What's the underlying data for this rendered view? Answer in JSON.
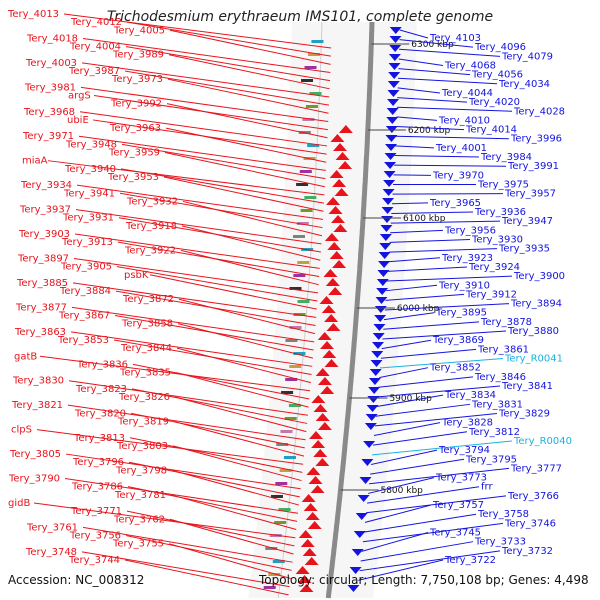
{
  "title": "Trichodesmium erythraeum IMS101, complete genome",
  "accession": "Accession: NC_008312",
  "topology": "Topology: circular; Length: 7,750,108 bp; Genes: 4,498",
  "colors": {
    "forward": "#e8141c",
    "reverse": "#1414e0",
    "rna": "#18b4e0",
    "backbone": "#8a8a8a",
    "tick": "#2a8a2a"
  },
  "scale_ticks": [
    {
      "label": "6300 kbp"
    },
    {
      "label": "6200 kbp"
    },
    {
      "label": "6100 kbp"
    },
    {
      "label": "6000 kbp"
    },
    {
      "label": "5900 kbp"
    },
    {
      "label": "5800 kbp"
    }
  ],
  "left_labels": [
    "Tery_4013",
    "Tery_4012",
    "Tery_4005",
    "Tery_4018",
    "Tery_4004",
    "Tery_3989",
    "Tery_4003",
    "Tery_3987",
    "Tery_3973",
    "Tery_3981",
    "argS",
    "Tery_3992",
    "Tery_3968",
    "ubiE",
    "Tery_3963",
    "Tery_3971",
    "Tery_3948",
    "Tery_3959",
    "miaA",
    "Tery_3940",
    "Tery_3953",
    "Tery_3934",
    "Tery_3941",
    "Tery_3932",
    "Tery_3937",
    "Tery_3931",
    "Tery_3918",
    "Tery_3903",
    "Tery_3913",
    "Tery_3922",
    "Tery_3897",
    "Tery_3905",
    "psbK",
    "Tery_3885",
    "Tery_3884",
    "Tery_3872",
    "Tery_3877",
    "Tery_3867",
    "Tery_3858",
    "Tery_3863",
    "Tery_3853",
    "Tery_3844",
    "gatB",
    "Tery_3836",
    "Tery_3835",
    "Tery_3830",
    "Tery_3823",
    "Tery_3826",
    "Tery_3821",
    "Tery_3820",
    "Tery_3819",
    "clpS",
    "Tery_3813",
    "Tery_3803",
    "Tery_3805",
    "Tery_3796",
    "Tery_3798",
    "Tery_3790",
    "Tery_3786",
    "Tery_3781",
    "gidB",
    "Tery_3771",
    "Tery_3762",
    "Tery_3761",
    "Tery_3756",
    "Tery_3755",
    "Tery_3748",
    "Tery_3744"
  ],
  "right_labels": [
    "Tery_4103",
    "Tery_4096",
    "Tery_4079",
    "Tery_4068",
    "Tery_4056",
    "Tery_4034",
    "Tery_4044",
    "Tery_4020",
    "Tery_4028",
    "Tery_4010",
    "Tery_4014",
    "Tery_3996",
    "Tery_4001",
    "Tery_3984",
    "Tery_3991",
    "Tery_3970",
    "Tery_3975",
    "Tery_3957",
    "Tery_3965",
    "Tery_3936",
    "Tery_3947",
    "Tery_3956",
    "Tery_3930",
    "Tery_3935",
    "Tery_3923",
    "Tery_3924",
    "Tery_3900",
    "Tery_3910",
    "Tery_3912",
    "Tery_3894",
    "Tery_3895",
    "Tery_3878",
    "Tery_3880",
    "Tery_3869",
    "Tery_3861",
    "Tery_R0041",
    "Tery_3852",
    "Tery_3846",
    "Tery_3841",
    "Tery_3834",
    "Tery_3831",
    "Tery_3829",
    "Tery_3828",
    "Tery_3812",
    "Tery_R0040",
    "Tery_3794",
    "Tery_3795",
    "Tery_3777",
    "Tery_3773",
    "frr",
    "Tery_3766",
    "Tery_3757",
    "Tery_3758",
    "Tery_3746",
    "Tery_3745",
    "Tery_3733",
    "Tery_3732",
    "Tery_3722"
  ]
}
